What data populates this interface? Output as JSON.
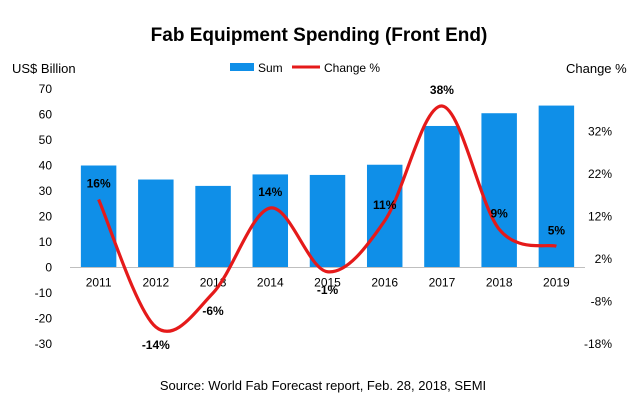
{
  "chart_data": {
    "type": "bar",
    "title": "Fab Equipment Spending (Front End)",
    "source": "Source: World Fab Forecast report, Feb. 28, 2018, SEMI",
    "categories": [
      "2011",
      "2012",
      "2013",
      "2014",
      "2015",
      "2016",
      "2017",
      "2018",
      "2019"
    ],
    "series": [
      {
        "name": "Sum",
        "type": "bar",
        "axis": "left",
        "color": "#0f8fe8",
        "values": [
          40,
          34.5,
          32,
          36.5,
          36.3,
          40.3,
          55.5,
          60.5,
          63.5
        ]
      },
      {
        "name": "Change %",
        "type": "line",
        "axis": "right",
        "color": "#e51a1a",
        "values": [
          16,
          -14,
          -6,
          14,
          -1,
          11,
          38,
          9,
          5
        ],
        "data_labels": [
          "16%",
          "-14%",
          "-6%",
          "14%",
          "-1%",
          "11%",
          "38%",
          "9%",
          "5%"
        ]
      }
    ],
    "y_left": {
      "label": "US$ Billion",
      "ylim": [
        -30,
        70
      ],
      "ticks": [
        "-30",
        "-20",
        "-10",
        "0",
        "10",
        "20",
        "30",
        "40",
        "50",
        "60",
        "70"
      ]
    },
    "y_right": {
      "label": "Change %",
      "ylim": [
        -18,
        42
      ],
      "ticks": [
        "-18%",
        "-8%",
        "2%",
        "12%",
        "22%",
        "32%"
      ],
      "tick_values": [
        -18,
        -8,
        2,
        12,
        22,
        32
      ]
    },
    "legend_position": "top-center",
    "grid": false
  }
}
